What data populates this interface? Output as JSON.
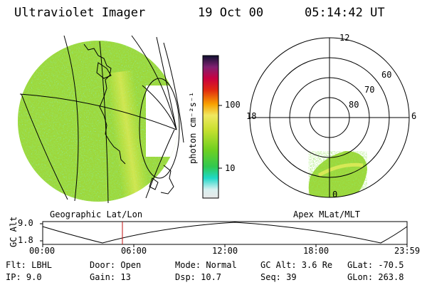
{
  "header": {
    "instrument": "Ultraviolet Imager",
    "date": "19 Oct 00",
    "time": "05:14:42 UT"
  },
  "colorbar": {
    "unit_label": "photon cm⁻²s⁻¹",
    "ticks": [
      "100",
      "10"
    ]
  },
  "left_panel": {
    "caption": "Geographic Lat/Lon"
  },
  "right_panel": {
    "caption": "Apex MLat/MLT",
    "mlt_labels": {
      "top": "12",
      "left": "18",
      "right": "6",
      "bottom": "0"
    },
    "lat_labels": [
      "60",
      "70",
      "80"
    ]
  },
  "timeline": {
    "ylabel": "GC Alt",
    "y_ticks": [
      "9.0",
      "1.8"
    ],
    "x_ticks": [
      "00:00",
      "06:00",
      "12:00",
      "18:00",
      "23:59"
    ],
    "marker_time_hours": 5.25
  },
  "info": {
    "flt": "Flt: LBHL",
    "ip": "IP:  9.0",
    "door": "Door: Open",
    "gain": "Gain: 13",
    "mode": "Mode: Normal",
    "dsp": "Dsp:   10.7",
    "gcalt": "GC Alt: 3.6 Re",
    "seq": "Seq: 39",
    "glat": "GLat: -70.5",
    "glon": "GLon: 263.8"
  }
}
